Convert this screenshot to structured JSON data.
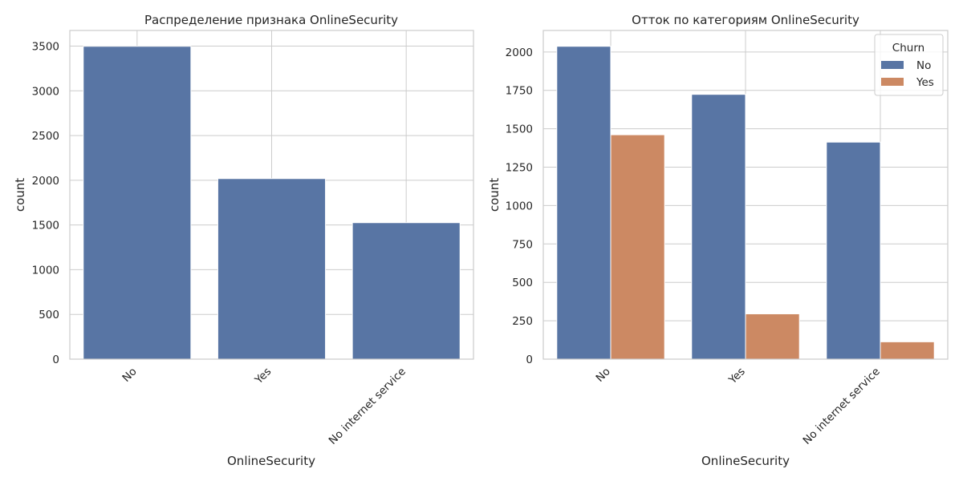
{
  "chart_data": [
    {
      "type": "bar",
      "title": "Распределение признака OnlineSecurity",
      "xlabel": "OnlineSecurity",
      "ylabel": "count",
      "categories": [
        "No",
        "Yes",
        "No internet service"
      ],
      "values": [
        3498,
        2019,
        1526
      ],
      "ylim": [
        0,
        3675
      ],
      "yticks": [
        0,
        500,
        1000,
        1500,
        2000,
        2500,
        3000,
        3500
      ],
      "grid": true,
      "color": "#5875a4"
    },
    {
      "type": "bar",
      "title": "Отток по категориям OnlineSecurity",
      "xlabel": "OnlineSecurity",
      "ylabel": "count",
      "categories": [
        "No",
        "Yes",
        "No internet service"
      ],
      "series": [
        {
          "name": "No",
          "values": [
            2037,
            1724,
            1413
          ],
          "color": "#5875a4"
        },
        {
          "name": "Yes",
          "values": [
            1461,
            295,
            113
          ],
          "color": "#cc8963"
        }
      ],
      "legend": {
        "title": "Churn",
        "position": "top-right"
      },
      "ylim": [
        0,
        2140
      ],
      "yticks": [
        0,
        250,
        500,
        750,
        1000,
        1250,
        1500,
        1750,
        2000
      ],
      "grid": true
    }
  ]
}
